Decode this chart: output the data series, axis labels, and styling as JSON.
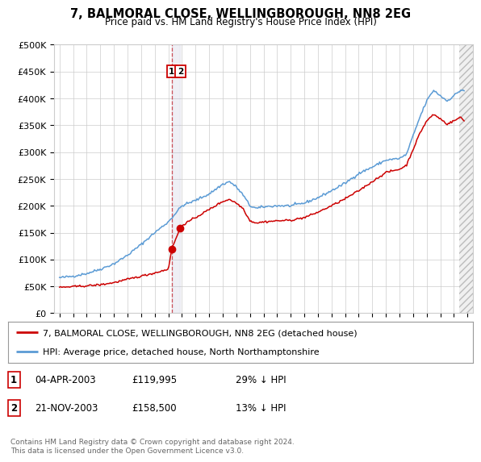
{
  "title": "7, BALMORAL CLOSE, WELLINGBOROUGH, NN8 2EG",
  "subtitle": "Price paid vs. HM Land Registry's House Price Index (HPI)",
  "ylim": [
    0,
    500000
  ],
  "yticks": [
    0,
    50000,
    100000,
    150000,
    200000,
    250000,
    300000,
    350000,
    400000,
    450000,
    500000
  ],
  "ytick_labels": [
    "£0",
    "£50K",
    "£100K",
    "£150K",
    "£200K",
    "£250K",
    "£300K",
    "£350K",
    "£400K",
    "£450K",
    "£500K"
  ],
  "xlim_start": 1994.6,
  "xlim_end": 2025.4,
  "red_line_label": "7, BALMORAL CLOSE, WELLINGBOROUGH, NN8 2EG (detached house)",
  "blue_line_label": "HPI: Average price, detached house, North Northamptonshire",
  "transaction1_date": "04-APR-2003",
  "transaction1_price": "£119,995",
  "transaction1_hpi": "29% ↓ HPI",
  "transaction1_x": 2003.25,
  "transaction1_y": 119995,
  "transaction2_date": "21-NOV-2003",
  "transaction2_price": "£158,500",
  "transaction2_hpi": "13% ↓ HPI",
  "transaction2_x": 2003.88,
  "transaction2_y": 158500,
  "red_color": "#cc0000",
  "blue_color": "#5b9bd5",
  "background_color": "#ffffff",
  "grid_color": "#cccccc",
  "footer_text": "Contains HM Land Registry data © Crown copyright and database right 2024.\nThis data is licensed under the Open Government Licence v3.0."
}
